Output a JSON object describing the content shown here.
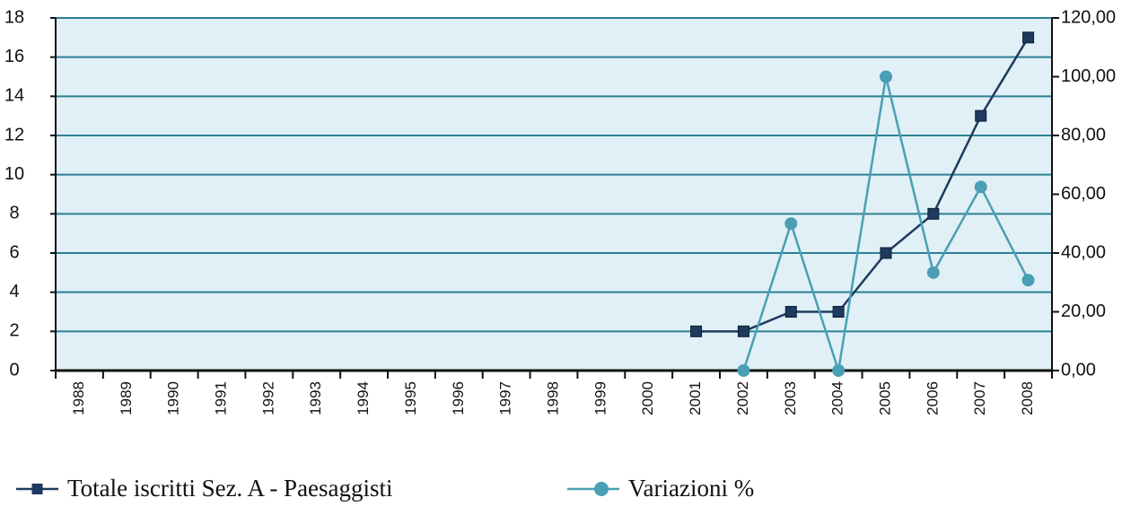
{
  "chart_data": {
    "type": "line",
    "categories": [
      "1988",
      "1989",
      "1990",
      "1991",
      "1992",
      "1993",
      "1994",
      "1995",
      "1996",
      "1997",
      "1998",
      "1999",
      "2000",
      "2001",
      "2002",
      "2003",
      "2004",
      "2005",
      "2006",
      "2007",
      "2008"
    ],
    "series": [
      {
        "name": "Totale iscritti Sez. A - Paesaggisti",
        "color": "#1f3a5f",
        "marker": "square",
        "values": [
          null,
          null,
          null,
          null,
          null,
          null,
          null,
          null,
          null,
          null,
          null,
          null,
          null,
          2,
          2,
          3,
          3,
          6,
          8,
          13,
          17
        ]
      },
      {
        "name": "Variazioni %",
        "color": "#4a9fb5",
        "marker": "circle",
        "axis": "y2",
        "values": [
          null,
          null,
          null,
          null,
          null,
          null,
          null,
          null,
          null,
          null,
          null,
          null,
          null,
          null,
          0,
          50,
          0,
          100,
          33.33,
          62.5,
          30.77
        ]
      }
    ],
    "ylim": [
      0,
      18
    ],
    "yticks": [
      0,
      2,
      4,
      6,
      8,
      10,
      12,
      14,
      16,
      18
    ],
    "y2lim": [
      0,
      120
    ],
    "y2ticks": [
      {
        "value": 0,
        "label": "0,00"
      },
      {
        "value": 20,
        "label": "20,00"
      },
      {
        "value": 40,
        "label": "40,00"
      },
      {
        "value": 60,
        "label": "60,00"
      },
      {
        "value": 80,
        "label": "80,00"
      },
      {
        "value": 100,
        "label": "100,00"
      },
      {
        "value": 120,
        "label": "120,00"
      }
    ],
    "grid": true,
    "legend": "bottom"
  }
}
